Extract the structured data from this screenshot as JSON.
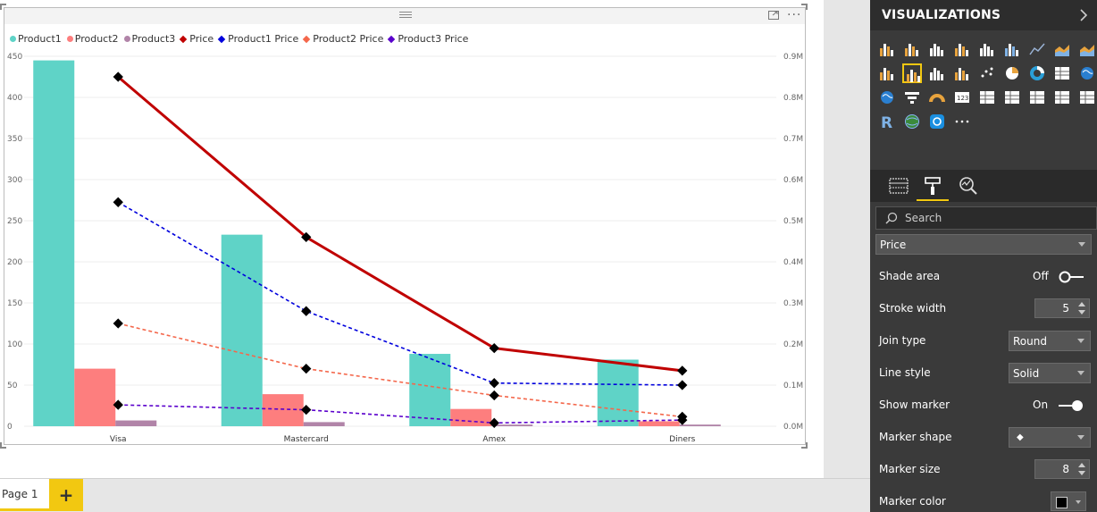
{
  "report": {
    "page_tab": "Page 1",
    "add_page": "+"
  },
  "visual": {
    "more_label": "···"
  },
  "chart_data": {
    "type": "bar",
    "categories": [
      "Visa",
      "Mastercard",
      "Amex",
      "Diners"
    ],
    "bar_series": [
      {
        "name": "Product1",
        "color": "#5fd3c7",
        "values": [
          445,
          233,
          88,
          81
        ]
      },
      {
        "name": "Product2",
        "color": "#fd7e7e",
        "values": [
          70,
          39,
          21,
          6
        ]
      },
      {
        "name": "Product3",
        "color": "#b184a8",
        "values": [
          7,
          5,
          2,
          2
        ]
      }
    ],
    "line_series": [
      {
        "name": "Price",
        "color": "#c00000",
        "dash": "solid",
        "values": [
          0.85,
          0.46,
          0.19,
          0.135
        ]
      },
      {
        "name": "Product1 Price",
        "color": "#0000dd",
        "dash": "dashed",
        "values": [
          0.545,
          0.28,
          0.105,
          0.1
        ]
      },
      {
        "name": "Product2 Price",
        "color": "#f4674b",
        "dash": "dashed",
        "values": [
          0.25,
          0.14,
          0.075,
          0.023
        ]
      },
      {
        "name": "Product3 Price",
        "color": "#5a00cc",
        "dash": "dashed",
        "values": [
          0.052,
          0.04,
          0.008,
          0.015
        ]
      }
    ],
    "y_left": {
      "min": 0,
      "max": 450,
      "ticks": [
        "450",
        "400",
        "350",
        "300",
        "250",
        "200",
        "150",
        "100",
        "50",
        "0"
      ]
    },
    "y_right": {
      "min": 0,
      "max": 0.9,
      "ticks": [
        "0.9M",
        "0.8M",
        "0.7M",
        "0.6M",
        "0.5M",
        "0.4M",
        "0.3M",
        "0.2M",
        "0.1M",
        "0.0M"
      ]
    },
    "legend_position": "top-left",
    "grid": true
  },
  "panel": {
    "title": "VISUALIZATIONS",
    "search_placeholder": "Search",
    "series_select": "Price",
    "properties": [
      {
        "label": "Shade area",
        "value": "Off"
      },
      {
        "label": "Stroke width",
        "value": "5"
      },
      {
        "label": "Join type",
        "value": "Round"
      },
      {
        "label": "Line style",
        "value": "Solid"
      },
      {
        "label": "Show marker",
        "value": "On"
      },
      {
        "label": "Marker shape",
        "value": "◆"
      },
      {
        "label": "Marker size",
        "value": "8"
      },
      {
        "label": "Marker color",
        "value": ""
      }
    ]
  }
}
